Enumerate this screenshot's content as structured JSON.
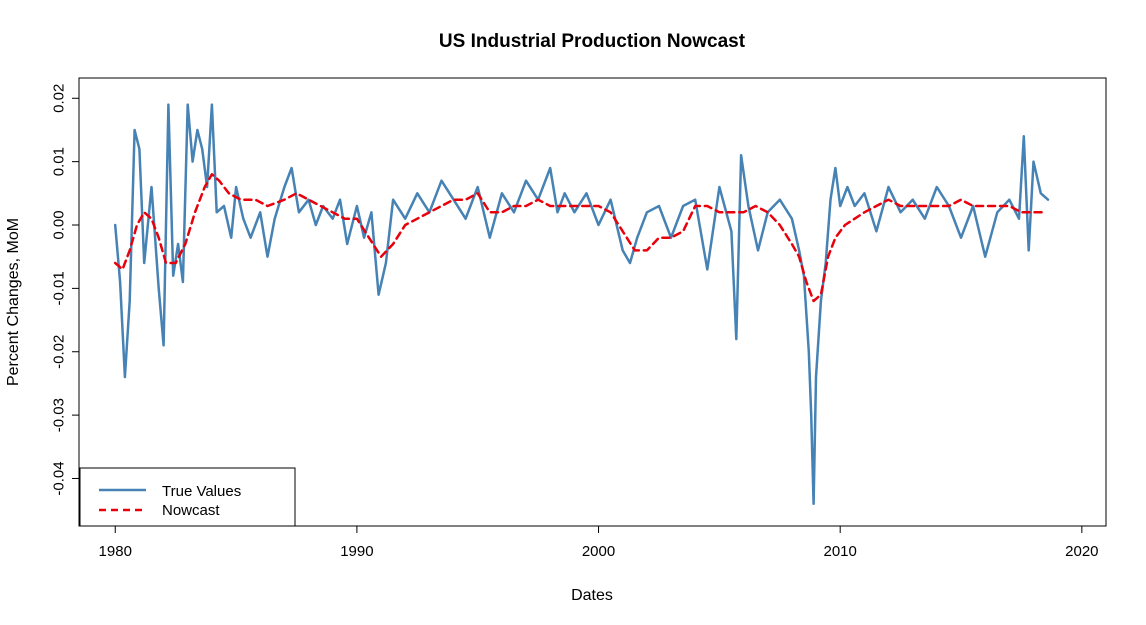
{
  "chart_data": {
    "type": "line",
    "title": "US Industrial Production Nowcast",
    "xlabel": "Dates",
    "ylabel": "Percent Changes, MoM",
    "xlim": [
      1978.5,
      2021.0
    ],
    "ylim": [
      -0.0475,
      0.0232
    ],
    "x_ticks": [
      1980,
      1990,
      2000,
      2010,
      2020
    ],
    "y_ticks": [
      -0.04,
      -0.03,
      -0.02,
      -0.01,
      0.0,
      0.01,
      0.02
    ],
    "y_tick_labels": [
      "-0.04",
      "-0.03",
      "-0.02",
      "-0.01",
      "0.00",
      "0.01",
      "0.02"
    ],
    "grid": false,
    "legend_position": "bottom-left",
    "series": [
      {
        "name": "True Values",
        "color": "#4682B4",
        "style": "solid",
        "x": [
          1980.0,
          1980.2,
          1980.4,
          1980.6,
          1980.8,
          1981.0,
          1981.2,
          1981.5,
          1981.8,
          1982.0,
          1982.2,
          1982.4,
          1982.6,
          1982.8,
          1983.0,
          1983.2,
          1983.4,
          1983.6,
          1983.8,
          1984.0,
          1984.2,
          1984.5,
          1984.8,
          1985.0,
          1985.3,
          1985.6,
          1986.0,
          1986.3,
          1986.6,
          1987.0,
          1987.3,
          1987.6,
          1988.0,
          1988.3,
          1988.6,
          1989.0,
          1989.3,
          1989.6,
          1990.0,
          1990.3,
          1990.6,
          1990.9,
          1991.2,
          1991.5,
          1992.0,
          1992.5,
          1993.0,
          1993.5,
          1994.0,
          1994.5,
          1995.0,
          1995.5,
          1996.0,
          1996.5,
          1997.0,
          1997.5,
          1998.0,
          1998.3,
          1998.6,
          1999.0,
          1999.5,
          2000.0,
          2000.5,
          2001.0,
          2001.3,
          2001.6,
          2002.0,
          2002.5,
          2003.0,
          2003.5,
          2004.0,
          2004.5,
          2005.0,
          2005.5,
          2005.7,
          2005.9,
          2006.2,
          2006.6,
          2007.0,
          2007.5,
          2008.0,
          2008.3,
          2008.5,
          2008.7,
          2008.8,
          2008.9,
          2009.0,
          2009.2,
          2009.4,
          2009.6,
          2009.8,
          2010.0,
          2010.3,
          2010.6,
          2011.0,
          2011.5,
          2012.0,
          2012.5,
          2013.0,
          2013.5,
          2014.0,
          2014.5,
          2015.0,
          2015.5,
          2016.0,
          2016.5,
          2017.0,
          2017.4,
          2017.6,
          2017.8,
          2018.0,
          2018.3,
          2018.6
        ],
        "y": [
          0.0,
          -0.009,
          -0.024,
          -0.012,
          0.015,
          0.012,
          -0.006,
          0.006,
          -0.01,
          -0.019,
          0.019,
          -0.008,
          -0.003,
          -0.009,
          0.019,
          0.01,
          0.015,
          0.012,
          0.006,
          0.019,
          0.002,
          0.003,
          -0.002,
          0.006,
          0.001,
          -0.002,
          0.002,
          -0.005,
          0.001,
          0.006,
          0.009,
          0.002,
          0.004,
          0.0,
          0.003,
          0.001,
          0.004,
          -0.003,
          0.003,
          -0.002,
          0.002,
          -0.011,
          -0.006,
          0.004,
          0.001,
          0.005,
          0.002,
          0.007,
          0.004,
          0.001,
          0.006,
          -0.002,
          0.005,
          0.002,
          0.007,
          0.004,
          0.009,
          0.002,
          0.005,
          0.002,
          0.005,
          0.0,
          0.004,
          -0.004,
          -0.006,
          -0.002,
          0.002,
          0.003,
          -0.002,
          0.003,
          0.004,
          -0.007,
          0.006,
          -0.001,
          -0.018,
          0.011,
          0.003,
          -0.004,
          0.002,
          0.004,
          0.001,
          -0.004,
          -0.008,
          -0.02,
          -0.03,
          -0.044,
          -0.024,
          -0.012,
          -0.006,
          0.004,
          0.009,
          0.003,
          0.006,
          0.003,
          0.005,
          -0.001,
          0.006,
          0.002,
          0.004,
          0.001,
          0.006,
          0.003,
          -0.002,
          0.003,
          -0.005,
          0.002,
          0.004,
          0.001,
          0.014,
          -0.004,
          0.01,
          0.005,
          0.004
        ]
      },
      {
        "name": "Nowcast",
        "color": "#E8000B",
        "style": "dashed",
        "x": [
          1980.0,
          1980.3,
          1980.6,
          1980.9,
          1981.2,
          1981.5,
          1981.8,
          1982.1,
          1982.5,
          1982.9,
          1983.3,
          1983.7,
          1984.0,
          1984.3,
          1984.7,
          1985.2,
          1985.8,
          1986.3,
          1987.0,
          1987.5,
          1988.0,
          1988.5,
          1989.0,
          1989.5,
          1990.0,
          1990.5,
          1991.0,
          1991.5,
          1992.0,
          1992.5,
          1993.0,
          1993.5,
          1994.0,
          1994.5,
          1995.0,
          1995.5,
          1996.0,
          1996.5,
          1997.0,
          1997.5,
          1998.0,
          1998.5,
          1999.0,
          1999.5,
          2000.0,
          2000.5,
          2001.0,
          2001.5,
          2002.0,
          2002.5,
          2003.0,
          2003.5,
          2004.0,
          2004.5,
          2005.0,
          2005.5,
          2006.0,
          2006.5,
          2007.0,
          2007.5,
          2008.0,
          2008.3,
          2008.6,
          2008.9,
          2009.2,
          2009.5,
          2009.8,
          2010.2,
          2010.6,
          2011.0,
          2011.5,
          2012.0,
          2012.5,
          2013.0,
          2013.5,
          2014.0,
          2014.5,
          2015.0,
          2015.5,
          2016.0,
          2016.5,
          2017.0,
          2017.5,
          2018.0,
          2018.5
        ],
        "y": [
          -0.006,
          -0.007,
          -0.004,
          0.0,
          0.002,
          0.001,
          -0.002,
          -0.006,
          -0.006,
          -0.003,
          0.002,
          0.006,
          0.008,
          0.007,
          0.005,
          0.004,
          0.004,
          0.003,
          0.004,
          0.005,
          0.004,
          0.003,
          0.002,
          0.001,
          0.001,
          -0.002,
          -0.005,
          -0.003,
          0.0,
          0.001,
          0.002,
          0.003,
          0.004,
          0.004,
          0.005,
          0.002,
          0.002,
          0.003,
          0.003,
          0.004,
          0.003,
          0.003,
          0.003,
          0.003,
          0.003,
          0.002,
          -0.001,
          -0.004,
          -0.004,
          -0.002,
          -0.002,
          -0.001,
          0.003,
          0.003,
          0.002,
          0.002,
          0.002,
          0.003,
          0.002,
          0.0,
          -0.003,
          -0.005,
          -0.009,
          -0.012,
          -0.011,
          -0.005,
          -0.002,
          0.0,
          0.001,
          0.002,
          0.003,
          0.004,
          0.003,
          0.003,
          0.003,
          0.003,
          0.003,
          0.004,
          0.003,
          0.003,
          0.003,
          0.003,
          0.002,
          0.002,
          0.002
        ]
      }
    ]
  }
}
